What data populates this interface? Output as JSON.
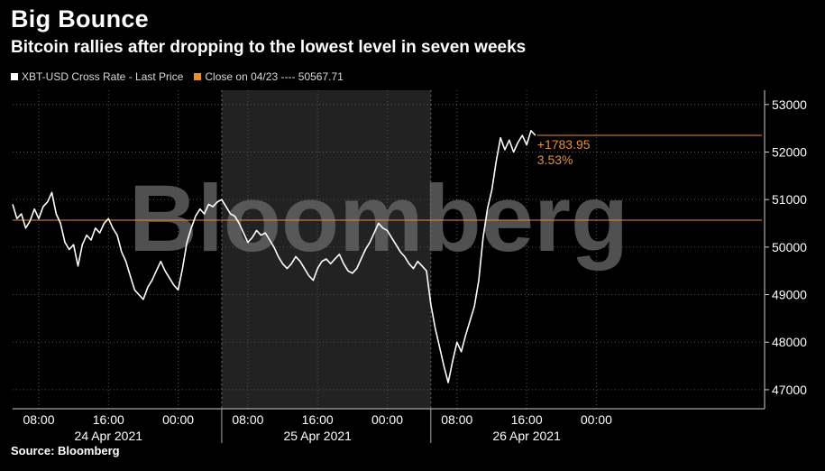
{
  "header": {
    "title": "Big Bounce",
    "subtitle": "Bitcoin rallies after dropping to the lowest level in seven weeks"
  },
  "legend": {
    "series_label": "XBT-USD Cross Rate - Last Price",
    "reference_label": "Close on 04/23 ---- 50567.71"
  },
  "source": "Source: Bloomberg",
  "watermark": "Bloomberg",
  "colors": {
    "background": "#000000",
    "line": "#ffffff",
    "reference": "#e8902c",
    "shade": "#222222"
  },
  "chart_data": {
    "type": "line",
    "x_unit": "hours from 2021-04-24 05:00",
    "ylim": [
      46600,
      53300
    ],
    "xlim": [
      0,
      86
    ],
    "y_ticks": [
      {
        "value": 47000,
        "label": "47000"
      },
      {
        "value": 48000,
        "label": "48000"
      },
      {
        "value": 49000,
        "label": "49000"
      },
      {
        "value": 50000,
        "label": "50000"
      },
      {
        "value": 51000,
        "label": "51000"
      },
      {
        "value": 52000,
        "label": "52000"
      },
      {
        "value": 53000,
        "label": "53000"
      }
    ],
    "x_ticks": [
      {
        "x": 3,
        "label": "08:00"
      },
      {
        "x": 11,
        "label": "16:00"
      },
      {
        "x": 19,
        "label": "00:00"
      },
      {
        "x": 27,
        "label": "08:00"
      },
      {
        "x": 35,
        "label": "16:00"
      },
      {
        "x": 43,
        "label": "00:00"
      },
      {
        "x": 51,
        "label": "08:00"
      },
      {
        "x": 59,
        "label": "16:00"
      },
      {
        "x": 67,
        "label": "00:00"
      }
    ],
    "day_labels": [
      {
        "x": 11,
        "label": "24 Apr 2021"
      },
      {
        "x": 35,
        "label": "25 Apr 2021"
      },
      {
        "x": 59,
        "label": "26 Apr 2021"
      }
    ],
    "day_dividers": [
      24,
      48
    ],
    "shaded_region": [
      24,
      48
    ],
    "reference_line": {
      "value": 50567.71
    },
    "change_annotation": {
      "level": 52351.66,
      "change": "+1783.95",
      "percent": "3.53%"
    },
    "series": [
      {
        "points": [
          [
            0.0,
            50900
          ],
          [
            0.5,
            50600
          ],
          [
            1.0,
            50700
          ],
          [
            1.5,
            50400
          ],
          [
            2.0,
            50550
          ],
          [
            2.5,
            50800
          ],
          [
            3.0,
            50600
          ],
          [
            3.5,
            50850
          ],
          [
            4.0,
            50950
          ],
          [
            4.5,
            51150
          ],
          [
            5.0,
            50700
          ],
          [
            5.5,
            50500
          ],
          [
            6.0,
            50100
          ],
          [
            6.5,
            49950
          ],
          [
            7.0,
            50050
          ],
          [
            7.5,
            49600
          ],
          [
            8.0,
            50050
          ],
          [
            8.5,
            50250
          ],
          [
            9.0,
            50150
          ],
          [
            9.5,
            50400
          ],
          [
            10.0,
            50300
          ],
          [
            10.5,
            50500
          ],
          [
            11.0,
            50600
          ],
          [
            11.5,
            50400
          ],
          [
            12.0,
            50250
          ],
          [
            12.5,
            49900
          ],
          [
            13.0,
            49700
          ],
          [
            13.5,
            49400
          ],
          [
            14.0,
            49100
          ],
          [
            14.5,
            49000
          ],
          [
            15.0,
            48900
          ],
          [
            15.5,
            49150
          ],
          [
            16.0,
            49300
          ],
          [
            16.5,
            49500
          ],
          [
            17.0,
            49700
          ],
          [
            17.5,
            49500
          ],
          [
            18.0,
            49350
          ],
          [
            18.5,
            49200
          ],
          [
            19.0,
            49100
          ],
          [
            19.5,
            49550
          ],
          [
            20.0,
            50100
          ],
          [
            20.5,
            50400
          ],
          [
            21.0,
            50650
          ],
          [
            21.5,
            50800
          ],
          [
            22.0,
            50700
          ],
          [
            22.5,
            50900
          ],
          [
            23.0,
            50850
          ],
          [
            23.5,
            50950
          ],
          [
            24.0,
            51000
          ],
          [
            24.5,
            50850
          ],
          [
            25.0,
            50700
          ],
          [
            25.5,
            50650
          ],
          [
            26.0,
            50500
          ],
          [
            26.5,
            50300
          ],
          [
            27.0,
            50100
          ],
          [
            27.5,
            50200
          ],
          [
            28.0,
            50350
          ],
          [
            28.5,
            50250
          ],
          [
            29.0,
            50300
          ],
          [
            29.5,
            50150
          ],
          [
            30.0,
            50000
          ],
          [
            30.5,
            49800
          ],
          [
            31.0,
            49650
          ],
          [
            31.5,
            49550
          ],
          [
            32.0,
            49650
          ],
          [
            32.5,
            49800
          ],
          [
            33.0,
            49700
          ],
          [
            33.5,
            49550
          ],
          [
            34.0,
            49400
          ],
          [
            34.5,
            49300
          ],
          [
            35.0,
            49550
          ],
          [
            35.5,
            49700
          ],
          [
            36.0,
            49750
          ],
          [
            36.5,
            49650
          ],
          [
            37.0,
            49750
          ],
          [
            37.5,
            49850
          ],
          [
            38.0,
            49650
          ],
          [
            38.5,
            49500
          ],
          [
            39.0,
            49450
          ],
          [
            39.5,
            49550
          ],
          [
            40.0,
            49750
          ],
          [
            40.5,
            49950
          ],
          [
            41.0,
            50100
          ],
          [
            41.5,
            50300
          ],
          [
            42.0,
            50500
          ],
          [
            42.5,
            50400
          ],
          [
            43.0,
            50350
          ],
          [
            43.5,
            50200
          ],
          [
            44.0,
            50050
          ],
          [
            44.5,
            49900
          ],
          [
            45.0,
            49800
          ],
          [
            45.5,
            49650
          ],
          [
            46.0,
            49550
          ],
          [
            46.5,
            49700
          ],
          [
            47.0,
            49600
          ],
          [
            47.5,
            49500
          ],
          [
            48.0,
            48800
          ],
          [
            48.5,
            48300
          ],
          [
            49.0,
            47900
          ],
          [
            49.5,
            47500
          ],
          [
            50.0,
            47150
          ],
          [
            50.5,
            47600
          ],
          [
            51.0,
            48000
          ],
          [
            51.5,
            47800
          ],
          [
            52.0,
            48150
          ],
          [
            52.5,
            48450
          ],
          [
            53.0,
            48750
          ],
          [
            53.5,
            49300
          ],
          [
            54.0,
            50200
          ],
          [
            54.5,
            50800
          ],
          [
            55.0,
            51200
          ],
          [
            55.5,
            51800
          ],
          [
            56.0,
            52300
          ],
          [
            56.5,
            52050
          ],
          [
            57.0,
            52250
          ],
          [
            57.5,
            52000
          ],
          [
            58.0,
            52200
          ],
          [
            58.5,
            52350
          ],
          [
            59.0,
            52150
          ],
          [
            59.5,
            52450
          ],
          [
            60.0,
            52351.66
          ]
        ]
      }
    ]
  }
}
